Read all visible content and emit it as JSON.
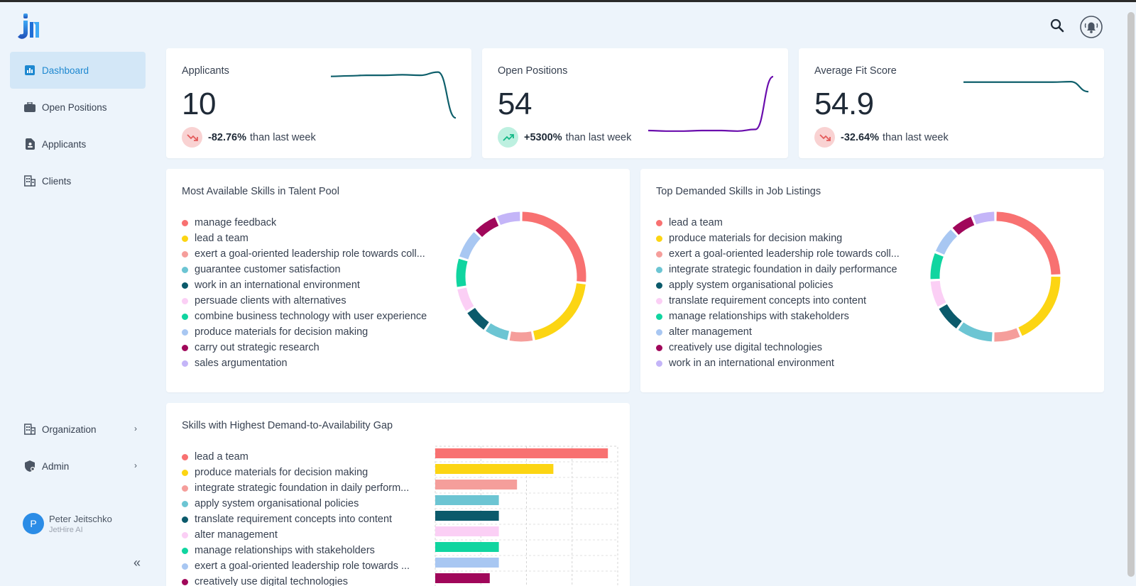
{
  "sidebar": {
    "brand_icon": "jethire-logo",
    "items": [
      {
        "label": "Dashboard",
        "icon": "bar-chart-icon",
        "active": true
      },
      {
        "label": "Open Positions",
        "icon": "briefcase-icon",
        "active": false
      },
      {
        "label": "Applicants",
        "icon": "badge-icon",
        "active": false
      },
      {
        "label": "Clients",
        "icon": "building-icon",
        "active": false
      }
    ],
    "lower_items": [
      {
        "label": "Organization",
        "icon": "building-icon"
      },
      {
        "label": "Admin",
        "icon": "shield-icon"
      }
    ],
    "user": {
      "initial": "P",
      "name": "Peter Jeitschko",
      "org": "JetHire AI"
    },
    "collapse_icon": "double-chevron-left-icon"
  },
  "topbar": {
    "search_icon": "search-icon",
    "notification_icon": "bell-icon"
  },
  "kpis": [
    {
      "title": "Applicants",
      "value": "10",
      "trend_pct": "-82.76%",
      "trend_text": "than last week",
      "direction": "down",
      "spark_color": "#0e5f6b",
      "spark": [
        0.82,
        0.83,
        0.84,
        0.84,
        0.85,
        0.84,
        0.9,
        0.05
      ]
    },
    {
      "title": "Open Positions",
      "value": "54",
      "trend_pct": "+5300%",
      "trend_text": "than last week",
      "direction": "up",
      "spark_color": "#6a0dad",
      "spark": [
        0.05,
        0.04,
        0.04,
        0.05,
        0.05,
        0.04,
        0.07,
        1.0
      ]
    },
    {
      "title": "Average Fit Score",
      "value": "54.9",
      "trend_pct": "-32.64%",
      "trend_text": "than last week",
      "direction": "down",
      "spark_color": "#0e5f6b",
      "spark": [
        0.82,
        0.82,
        0.82,
        0.82,
        0.82,
        0.82,
        0.84,
        0.4
      ]
    }
  ],
  "colors": [
    "#f87171",
    "#fcd513",
    "#f59e9b",
    "#6cc5d3",
    "#0b5a6b",
    "#fbcff5",
    "#10d5a0",
    "#a8c7f2",
    "#a0075a",
    "#c4b5f8"
  ],
  "talent_pool": {
    "title": "Most Available Skills in Talent Pool",
    "items": [
      "manage feedback",
      "lead a team",
      "exert a goal-oriented leadership role towards coll...",
      "guarantee customer satisfaction",
      "work in an international environment",
      "persuade clients with alternatives",
      "combine business technology with user experience",
      "produce materials for decision making",
      "carry out strategic research",
      "sales argumentation"
    ],
    "values": [
      21,
      16,
      5,
      5,
      5,
      5,
      6,
      6,
      5,
      5
    ]
  },
  "job_listings": {
    "title": "Top Demanded Skills in Job Listings",
    "items": [
      "lead a team",
      "produce materials for decision making",
      "exert a goal-oriented leadership role towards coll...",
      "integrate strategic foundation in daily performance",
      "apply system organisational policies",
      "translate requirement concepts into content",
      "manage relationships with stakeholders",
      "alter management",
      "creatively use digital technologies",
      "work in an international environment"
    ],
    "values": [
      21,
      16,
      6,
      8,
      6,
      6,
      6,
      6,
      5,
      5
    ]
  },
  "gap_chart": {
    "title": "Skills with Highest Demand-to-Availability Gap",
    "items": [
      "lead a team",
      "produce materials for decision making",
      "integrate strategic foundation in daily perform...",
      "apply system organisational policies",
      "translate requirement concepts into content",
      "alter management",
      "manage relationships with stakeholders",
      "exert a goal-oriented leadership role towards ...",
      "creatively use digital technologies"
    ],
    "values": [
      7.6,
      5.2,
      3.6,
      2.8,
      2.8,
      2.8,
      2.8,
      2.8,
      2.4
    ],
    "xmax": 8
  },
  "chart_data": [
    {
      "type": "pie",
      "title": "Most Available Skills in Talent Pool",
      "categories": [
        "manage feedback",
        "lead a team",
        "exert a goal-oriented leadership role towards coll...",
        "guarantee customer satisfaction",
        "work in an international environment",
        "persuade clients with alternatives",
        "combine business technology with user experience",
        "produce materials for decision making",
        "carry out strategic research",
        "sales argumentation"
      ],
      "values": [
        21,
        16,
        5,
        5,
        5,
        5,
        6,
        6,
        5,
        5
      ]
    },
    {
      "type": "pie",
      "title": "Top Demanded Skills in Job Listings",
      "categories": [
        "lead a team",
        "produce materials for decision making",
        "exert a goal-oriented leadership role towards coll...",
        "integrate strategic foundation in daily performance",
        "apply system organisational policies",
        "translate requirement concepts into content",
        "manage relationships with stakeholders",
        "alter management",
        "creatively use digital technologies",
        "work in an international environment"
      ],
      "values": [
        21,
        16,
        6,
        8,
        6,
        6,
        6,
        6,
        5,
        5
      ]
    },
    {
      "type": "bar",
      "title": "Skills with Highest Demand-to-Availability Gap",
      "categories": [
        "lead a team",
        "produce materials for decision making",
        "integrate strategic foundation in daily perform...",
        "apply system organisational policies",
        "translate requirement concepts into content",
        "alter management",
        "manage relationships with stakeholders",
        "exert a goal-oriented leadership role towards ...",
        "creatively use digital technologies"
      ],
      "values": [
        7.6,
        5.2,
        3.6,
        2.8,
        2.8,
        2.8,
        2.8,
        2.8,
        2.4
      ],
      "xlim": [
        0,
        8
      ]
    }
  ]
}
